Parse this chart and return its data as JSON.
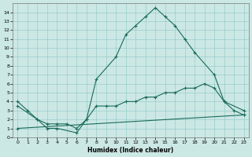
{
  "xlabel": "Humidex (Indice chaleur)",
  "xlim": [
    -0.5,
    23.5
  ],
  "ylim": [
    0,
    15
  ],
  "yticks": [
    0,
    1,
    2,
    3,
    4,
    5,
    6,
    7,
    8,
    9,
    10,
    11,
    12,
    13,
    14
  ],
  "xticks": [
    0,
    1,
    2,
    3,
    4,
    5,
    6,
    7,
    8,
    9,
    10,
    11,
    12,
    13,
    14,
    15,
    16,
    17,
    18,
    19,
    20,
    21,
    22,
    23
  ],
  "bg_color": "#cce8e4",
  "grid_color": "#99cccc",
  "line_color": "#1a6b5a",
  "line1_x": [
    0,
    1,
    2,
    3,
    4,
    6,
    7,
    8,
    10,
    11,
    12,
    13,
    14,
    15,
    16,
    17,
    18,
    20,
    21,
    22,
    23
  ],
  "line1_y": [
    4,
    3,
    2,
    1,
    1,
    0.5,
    2,
    6.5,
    9,
    11.5,
    12.5,
    13.5,
    14.5,
    13.5,
    12.5,
    11,
    9.5,
    7,
    4,
    3,
    2.5
  ],
  "line2_x": [
    0,
    2,
    3,
    4,
    5,
    6,
    7,
    8,
    9,
    10,
    11,
    12,
    13,
    14,
    15,
    16,
    17,
    18,
    19,
    20,
    21,
    23
  ],
  "line2_y": [
    3.5,
    2,
    1.5,
    1.5,
    1.5,
    1,
    2,
    3.5,
    3.5,
    3.5,
    4,
    4,
    4.5,
    4.5,
    5,
    5,
    5.5,
    5.5,
    6,
    5.5,
    4,
    3
  ],
  "line3_x": [
    0,
    23
  ],
  "line3_y": [
    1,
    2.5
  ]
}
